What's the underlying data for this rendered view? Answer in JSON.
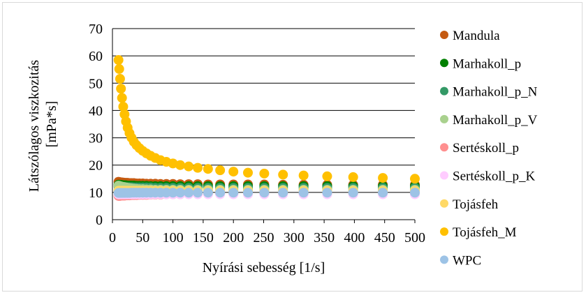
{
  "chart_data": {
    "type": "scatter",
    "title": "",
    "xlabel": "Nyírási sebesség [1/s]",
    "ylabel_lines": [
      "Látszólagos viszkozitás",
      "[mPa*s]"
    ],
    "xlim": [
      0,
      500
    ],
    "ylim": [
      0,
      70
    ],
    "x_ticks": [
      0,
      50,
      100,
      150,
      200,
      250,
      300,
      350,
      400,
      450,
      500
    ],
    "y_ticks": [
      0,
      10,
      20,
      30,
      40,
      50,
      60,
      70
    ],
    "x_tick_labels": [
      "0",
      "50",
      "100",
      "150",
      "200",
      "250",
      "300",
      "350",
      "400",
      "450",
      "500"
    ],
    "y_tick_labels": [
      "0",
      "10",
      "20",
      "30",
      "40",
      "50",
      "60",
      "70"
    ],
    "grid": "horizontal",
    "legend_position": "right",
    "x": [
      10,
      11.2,
      12.6,
      14.1,
      15.8,
      17.8,
      20,
      22.4,
      25.1,
      28.2,
      31.6,
      35.5,
      39.8,
      44.7,
      50.1,
      56.2,
      63.1,
      70.8,
      79.4,
      89.1,
      100,
      112,
      126,
      141,
      158,
      178,
      200,
      224,
      251,
      282,
      316,
      355,
      398,
      447,
      500
    ],
    "series": [
      {
        "name": "Mandula",
        "color": "#c55a11",
        "values": [
          13.9,
          13.8,
          13.7,
          13.7,
          13.6,
          13.6,
          13.5,
          13.5,
          13.5,
          13.4,
          13.4,
          13.4,
          13.3,
          13.3,
          13.3,
          13.2,
          13.2,
          13.2,
          13.1,
          13.1,
          13.1,
          13.0,
          13.0,
          13.0,
          12.9,
          12.9,
          12.9,
          12.9,
          12.9,
          12.8,
          12.8,
          12.8,
          12.8,
          12.8,
          12.8
        ]
      },
      {
        "name": "Marhakoll_p",
        "color": "#008000",
        "values": [
          12.8,
          12.8,
          12.7,
          12.7,
          12.7,
          12.6,
          12.6,
          12.6,
          12.5,
          12.5,
          12.5,
          12.5,
          12.4,
          12.4,
          12.4,
          12.4,
          12.3,
          12.3,
          12.3,
          12.3,
          12.3,
          12.3,
          12.3,
          12.3,
          12.3,
          12.3,
          12.3,
          12.3,
          12.3,
          12.3,
          12.3,
          12.3,
          12.3,
          12.3,
          12.3
        ]
      },
      {
        "name": "Marhakoll_p_N",
        "color": "#339966",
        "values": [
          12.2,
          12.2,
          12.1,
          12.1,
          12.0,
          12.0,
          12.0,
          11.9,
          11.9,
          11.9,
          11.9,
          11.8,
          11.8,
          11.8,
          11.8,
          11.8,
          11.8,
          11.7,
          11.7,
          11.7,
          11.7,
          11.7,
          11.7,
          11.7,
          11.7,
          11.7,
          11.7,
          11.7,
          11.7,
          11.7,
          11.7,
          11.7,
          11.7,
          11.7,
          11.7
        ]
      },
      {
        "name": "Marhakoll_p_V",
        "color": "#a9d18e",
        "values": [
          12.5,
          12.4,
          12.3,
          12.2,
          12.1,
          12.0,
          11.9,
          11.8,
          11.7,
          11.6,
          11.5,
          11.4,
          11.3,
          11.2,
          11.2,
          11.1,
          11.1,
          11.0,
          11.0,
          11.0,
          11.0,
          11.0,
          11.0,
          11.0,
          11.0,
          11.0,
          11.0,
          11.0,
          11.0,
          11.0,
          11.0,
          11.0,
          11.0,
          11.0,
          11.0
        ]
      },
      {
        "name": "Sertéskoll_p",
        "color": "#ff8f8f",
        "values": [
          8.7,
          8.7,
          8.7,
          8.8,
          8.8,
          8.8,
          8.8,
          8.9,
          8.9,
          8.9,
          9.0,
          9.0,
          9.0,
          9.1,
          9.1,
          9.1,
          9.2,
          9.2,
          9.2,
          9.3,
          9.3,
          9.3,
          9.4,
          9.4,
          9.4,
          9.5,
          9.5,
          9.5,
          9.5,
          9.6,
          9.6,
          9.6,
          9.6,
          9.7,
          9.7
        ]
      },
      {
        "name": "Sertéskoll_p_K",
        "color": "#ffccff",
        "values": [
          9.3,
          9.3,
          9.3,
          9.3,
          9.3,
          9.3,
          9.3,
          9.3,
          9.3,
          9.3,
          9.3,
          9.3,
          9.3,
          9.3,
          9.3,
          9.3,
          9.3,
          9.3,
          9.3,
          9.3,
          9.3,
          9.3,
          9.3,
          9.3,
          9.3,
          9.3,
          9.3,
          9.3,
          9.3,
          9.3,
          9.3,
          9.3,
          9.3,
          9.3,
          9.3
        ]
      },
      {
        "name": "Tojásfeh",
        "color": "#ffd966",
        "values": [
          10.6,
          10.6,
          10.6,
          10.6,
          10.6,
          10.6,
          10.6,
          10.6,
          10.6,
          10.6,
          10.6,
          10.6,
          10.6,
          10.6,
          10.6,
          10.6,
          10.6,
          10.6,
          10.6,
          10.6,
          10.6,
          10.6,
          10.6,
          10.6,
          10.6,
          10.6,
          10.6,
          10.6,
          10.6,
          10.6,
          10.6,
          10.6,
          10.6,
          10.6,
          10.6
        ]
      },
      {
        "name": "Tojásfeh_M",
        "color": "#ffc000",
        "values": [
          58.5,
          55.2,
          51.6,
          48.0,
          44.6,
          41.4,
          38.6,
          36.0,
          33.7,
          31.7,
          30.0,
          28.5,
          27.3,
          26.2,
          25.2,
          24.3,
          23.4,
          22.6,
          21.8,
          21.2,
          20.6,
          20.0,
          19.5,
          19.0,
          18.6,
          18.1,
          17.6,
          17.2,
          16.9,
          16.5,
          16.2,
          15.9,
          15.6,
          15.3,
          15.0
        ]
      },
      {
        "name": "WPC",
        "color": "#9dc3e6",
        "values": [
          9.8,
          9.8,
          9.8,
          9.8,
          9.8,
          9.8,
          9.8,
          9.8,
          9.8,
          9.8,
          9.9,
          9.9,
          9.9,
          9.9,
          9.9,
          9.9,
          9.9,
          9.9,
          9.9,
          9.9,
          9.9,
          9.9,
          9.9,
          9.9,
          9.9,
          9.9,
          9.9,
          9.9,
          9.9,
          9.9,
          9.9,
          9.9,
          9.9,
          9.9,
          9.9
        ]
      }
    ]
  }
}
